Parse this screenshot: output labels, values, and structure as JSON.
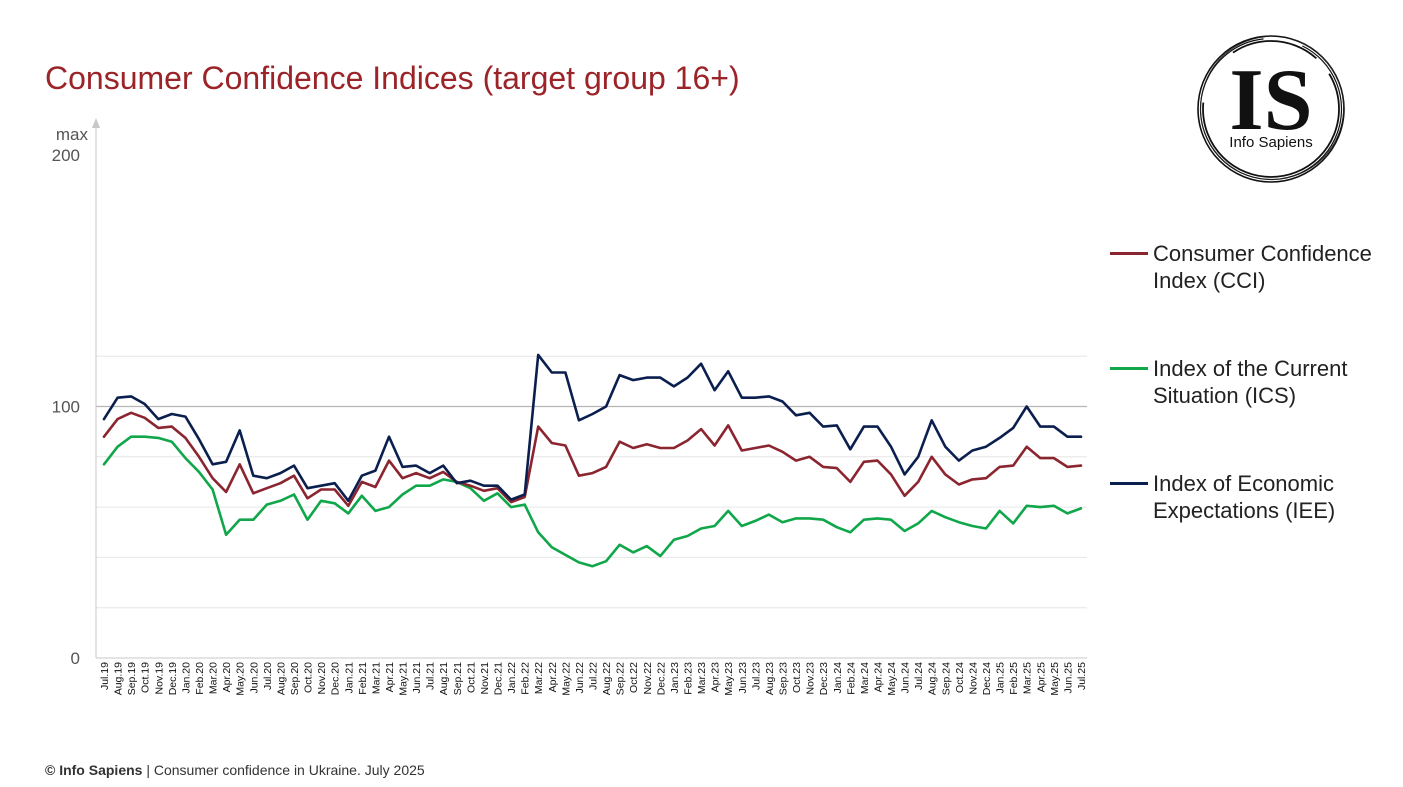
{
  "title": "Consumer Confidence Indices (target group 16+)",
  "footer": {
    "brand": "© Info Sapiens",
    "text": " | Consumer confidence in Ukraine. July 2025"
  },
  "logo": {
    "letters": "IS",
    "name": "Info Sapiens"
  },
  "legend": [
    {
      "label": "Consumer Confidence Index (CCI)",
      "color": "#8b2530"
    },
    {
      "label": "Index of the Current Situation (ICS)",
      "color": "#10a64a"
    },
    {
      "label": "Index of Economic Expectations (IEE)",
      "color": "#0b1f4f"
    }
  ],
  "chart_data": {
    "type": "line",
    "title": "Consumer Confidence Indices (target group 16+)",
    "y_label_top": "max",
    "ylim": [
      0,
      200
    ],
    "yticks": [
      0,
      100,
      200
    ],
    "grid_lines": [
      20,
      40,
      60,
      80,
      100,
      120
    ],
    "reference_line": 100,
    "x": [
      "Jul.19",
      "Aug.19",
      "Sep.19",
      "Oct.19",
      "Nov.19",
      "Dec.19",
      "Jan.20",
      "Feb.20",
      "Mar.20",
      "Apr.20",
      "May.20",
      "Jun.20",
      "Jul.20",
      "Aug.20",
      "Sep.20",
      "Oct.20",
      "Nov.20",
      "Dec.20",
      "Jan.21",
      "Feb.21",
      "Mar.21",
      "Apr.21",
      "May.21",
      "Jun.21",
      "Jul.21",
      "Aug.21",
      "Sep.21",
      "Oct.21",
      "Nov.21",
      "Dec.21",
      "Jan.22",
      "Feb.22",
      "Mar.22",
      "Apr.22",
      "May.22",
      "Jun.22",
      "Jul.22",
      "Aug.22",
      "Sep.22",
      "Oct.22",
      "Nov.22",
      "Dec.22",
      "Jan.23",
      "Feb.23",
      "Mar.23",
      "Apr.23",
      "May.23",
      "Jun.23",
      "Jul.23",
      "Aug.23",
      "Sep.23",
      "Oct.23",
      "Nov.23",
      "Dec.23",
      "Jan.24",
      "Feb.24",
      "Mar.24",
      "Apr.24",
      "May.24",
      "Jun.24",
      "Jul.24",
      "Aug.24",
      "Sep.24",
      "Oct.24",
      "Nov.24",
      "Dec.24",
      "Jan.25",
      "Feb.25",
      "Mar.25",
      "Apr.25",
      "May.25",
      "Jun.25",
      "Jul.25"
    ],
    "series": [
      {
        "name": "Consumer Confidence Index (CCI)",
        "color": "#8b2530",
        "values": [
          88,
          95,
          97.5,
          95.5,
          91.5,
          92,
          87.5,
          80,
          71.5,
          66,
          77,
          65.5,
          67.5,
          69.5,
          72.5,
          63.5,
          67,
          67,
          60.5,
          70,
          68,
          78.5,
          71.5,
          73.5,
          71.5,
          74,
          70,
          68.5,
          66.5,
          67.5,
          62,
          64,
          92,
          85.5,
          84.5,
          72.5,
          73.5,
          76,
          86,
          83.5,
          85,
          83.5,
          83.5,
          86.5,
          91,
          84.5,
          92.5,
          82.5,
          83.5,
          84.5,
          82,
          78.5,
          80,
          76,
          75.5,
          70,
          78,
          78.5,
          73,
          64.5,
          70,
          80,
          73,
          69,
          71,
          71.5,
          76,
          76.5,
          84,
          79.5,
          79.5,
          76,
          76.5
        ]
      },
      {
        "name": "Index of the Current Situation (ICS)",
        "color": "#10a64a",
        "values": [
          77,
          84,
          88,
          88,
          87.5,
          86,
          79.5,
          74,
          67,
          49,
          55,
          55,
          61,
          62.5,
          65,
          55,
          62.5,
          61.5,
          57.5,
          64.5,
          58.5,
          60,
          65,
          68.5,
          68.5,
          71,
          70,
          67.5,
          62.5,
          65.5,
          60,
          61,
          50,
          44,
          41,
          38,
          36.5,
          38.5,
          45,
          42,
          44.5,
          40.5,
          47,
          48.5,
          51.5,
          52.5,
          58.5,
          52.5,
          54.5,
          57,
          54,
          55.5,
          55.5,
          55,
          52,
          50,
          55,
          55.5,
          55,
          50.5,
          53.5,
          58.5,
          56,
          54,
          52.5,
          51.5,
          58.5,
          53.5,
          60.5,
          60,
          60.5,
          57.5,
          59.5
        ]
      },
      {
        "name": "Index of Economic Expectations (IEE)",
        "color": "#0b1f4f",
        "values": [
          95,
          103.5,
          104,
          101,
          95,
          97,
          96,
          87,
          77,
          78,
          90.5,
          72.5,
          71.5,
          73.5,
          76.5,
          67.5,
          68.5,
          69.5,
          62.5,
          72.5,
          74.5,
          88,
          76,
          76.5,
          73.5,
          76.5,
          69.5,
          70.5,
          68.5,
          68.5,
          63,
          65,
          120.5,
          113.5,
          113.5,
          94.5,
          97,
          100,
          112.5,
          110.5,
          111.5,
          111.5,
          108,
          111.5,
          117,
          106.5,
          114,
          103.5,
          103.5,
          104,
          102,
          96.5,
          97.5,
          92,
          92.5,
          83,
          92,
          92,
          84,
          73,
          80,
          94.5,
          84,
          78.5,
          82.5,
          84,
          87.5,
          91.5,
          100,
          92,
          92,
          88,
          88
        ]
      }
    ]
  }
}
